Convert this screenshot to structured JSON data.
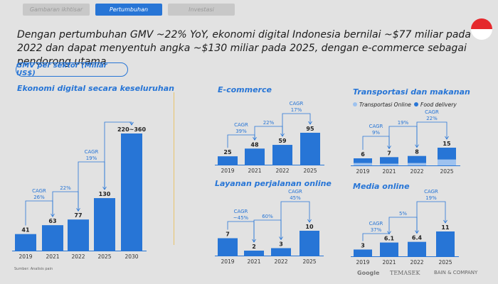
{
  "tabs": [
    {
      "label": "Gambaran ikhtisar",
      "active": false
    },
    {
      "label": "Pertumbuhan",
      "active": true
    },
    {
      "label": "Investasi",
      "active": false
    }
  ],
  "headline": "Dengan pertumbuhan GMV ~22% YoY, ekonomi digital Indonesia bernilai ~$77 miliar pada 2022 dan dapat menyentuh angka ~$130 miliar pada 2025, dengan e-commerce sebagai pendorong utama",
  "section_label": "GMV per sektor (Miliar US$)",
  "source": "Sumber: Analisis pain",
  "footer": {
    "google": "Google",
    "temasek": "TEMASEK",
    "bain": "BAIN & COMPANY"
  },
  "colors": {
    "bar": "#2775d6",
    "light_bar": "#9ec2ef",
    "axis": "#2775d6",
    "divider": "#e8c46b"
  },
  "chart_data": [
    {
      "type": "bar",
      "title": "Ekonomi digital secara keseluruhan",
      "categories": [
        "2019",
        "2021",
        "2022",
        "2025",
        "2030"
      ],
      "values": [
        41,
        63,
        77,
        130,
        290
      ],
      "labels": [
        "41",
        "63",
        "77",
        "130",
        "220~360"
      ],
      "cagr": [
        {
          "from": 0,
          "to": 1,
          "label": "CAGR 26%"
        },
        {
          "from": 1,
          "to": 2,
          "label": "22%"
        },
        {
          "from": 2,
          "to": 3,
          "label": "CAGR 19%"
        },
        {
          "from": 3,
          "to": 4,
          "label": ""
        }
      ]
    },
    {
      "type": "bar",
      "title": "E-commerce",
      "categories": [
        "2019",
        "2021",
        "2022",
        "2025"
      ],
      "values": [
        25,
        48,
        59,
        95
      ],
      "labels": [
        "25",
        "48",
        "59",
        "95"
      ],
      "cagr": [
        {
          "from": 0,
          "to": 1,
          "label": "CAGR 39%"
        },
        {
          "from": 1,
          "to": 2,
          "label": "22%"
        },
        {
          "from": 2,
          "to": 3,
          "label": "CAGR 17%"
        }
      ]
    },
    {
      "type": "bar",
      "title": "Transportasi dan makanan",
      "categories": [
        "2019",
        "2021",
        "2022",
        "2025"
      ],
      "series": [
        {
          "name": "Transportasi Online",
          "values": [
            2,
            1.5,
            2,
            5
          ]
        },
        {
          "name": "Food delivery",
          "values": [
            4,
            5.5,
            6,
            10
          ]
        }
      ],
      "labels": [
        "6",
        "7",
        "8",
        "15"
      ],
      "cagr": [
        {
          "from": 0,
          "to": 1,
          "label": "CAGR 9%"
        },
        {
          "from": 1,
          "to": 2,
          "label": "19%"
        },
        {
          "from": 2,
          "to": 3,
          "label": "CAGR 22%"
        }
      ]
    },
    {
      "type": "bar",
      "title": "Layanan perjalanan online",
      "categories": [
        "2019",
        "2021",
        "2022",
        "2025"
      ],
      "values": [
        7,
        2,
        3,
        10
      ],
      "labels": [
        "7",
        "2",
        "3",
        "10"
      ],
      "cagr": [
        {
          "from": 0,
          "to": 1,
          "label": "CAGR ~45%"
        },
        {
          "from": 1,
          "to": 2,
          "label": "60%"
        },
        {
          "from": 2,
          "to": 3,
          "label": "CAGR 45%"
        }
      ]
    },
    {
      "type": "bar",
      "title": "Media online",
      "categories": [
        "2019",
        "2021",
        "2022",
        "2025"
      ],
      "values": [
        3,
        6.1,
        6.4,
        11
      ],
      "labels": [
        "3",
        "6.1",
        "6.4",
        "11"
      ],
      "cagr": [
        {
          "from": 0,
          "to": 1,
          "label": "CAGR 37%"
        },
        {
          "from": 1,
          "to": 2,
          "label": "5%"
        },
        {
          "from": 2,
          "to": 3,
          "label": "CAGR 19%"
        }
      ]
    }
  ]
}
